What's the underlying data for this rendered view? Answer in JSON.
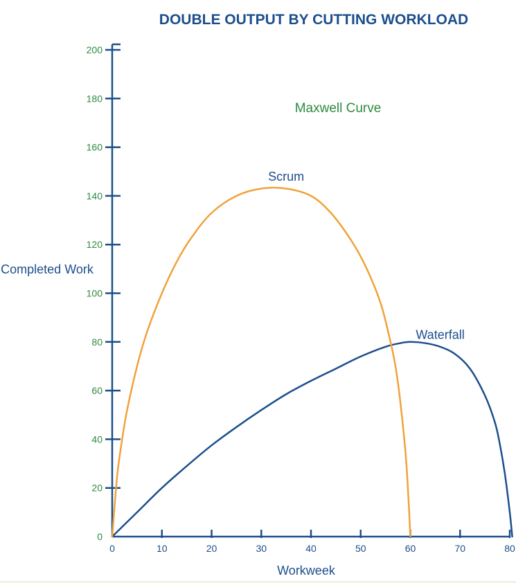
{
  "chart_data": {
    "type": "line",
    "title": "DOUBLE OUTPUT BY CUTTING WORKLOAD",
    "subtitle": "Maxwell Curve",
    "xlabel": "Workweek",
    "ylabel": "Completed Work",
    "xlim": [
      0,
      80
    ],
    "ylim": [
      0,
      200
    ],
    "x_ticks": [
      0,
      10,
      20,
      30,
      40,
      50,
      60,
      70,
      80
    ],
    "y_ticks": [
      0,
      20,
      40,
      60,
      80,
      100,
      120,
      140,
      160,
      180,
      200
    ],
    "grid": false,
    "legend": "inline labels",
    "series": [
      {
        "name": "Scrum",
        "color": "#f0a23a",
        "x": [
          0,
          1,
          2,
          3,
          5,
          7,
          10,
          13,
          16,
          20,
          25,
          30,
          35,
          40,
          44,
          48,
          51,
          54,
          56,
          57,
          58,
          59,
          59.5,
          60
        ],
        "y": [
          0,
          25,
          40,
          52,
          70,
          84,
          100,
          113,
          123,
          133,
          140,
          143,
          143,
          140,
          133,
          122,
          111,
          96,
          80,
          70,
          55,
          35,
          20,
          0
        ]
      },
      {
        "name": "Waterfall",
        "color": "#1c4e8c",
        "x": [
          0,
          5,
          10,
          15,
          20,
          25,
          30,
          35,
          40,
          45,
          50,
          55,
          58,
          60,
          63,
          66,
          69,
          72,
          75,
          77,
          78,
          79,
          80,
          80.5
        ],
        "y": [
          0,
          10,
          20,
          29,
          37.5,
          45,
          52,
          58.5,
          64,
          69,
          74,
          78,
          79.5,
          80,
          79.5,
          78,
          75,
          69,
          58,
          47,
          38,
          26,
          10,
          0
        ]
      }
    ],
    "annotations": [
      {
        "text": "Scrum",
        "x": 35,
        "y": 148
      },
      {
        "text": "Waterfall",
        "x": 66,
        "y": 83
      }
    ]
  },
  "colors": {
    "axis": "#1c4e8c",
    "title": "#1c4e8c",
    "subtitle": "#2e8b3f",
    "y_tick_label": "#2e8b3f",
    "x_tick_label": "#1c4e8c"
  }
}
